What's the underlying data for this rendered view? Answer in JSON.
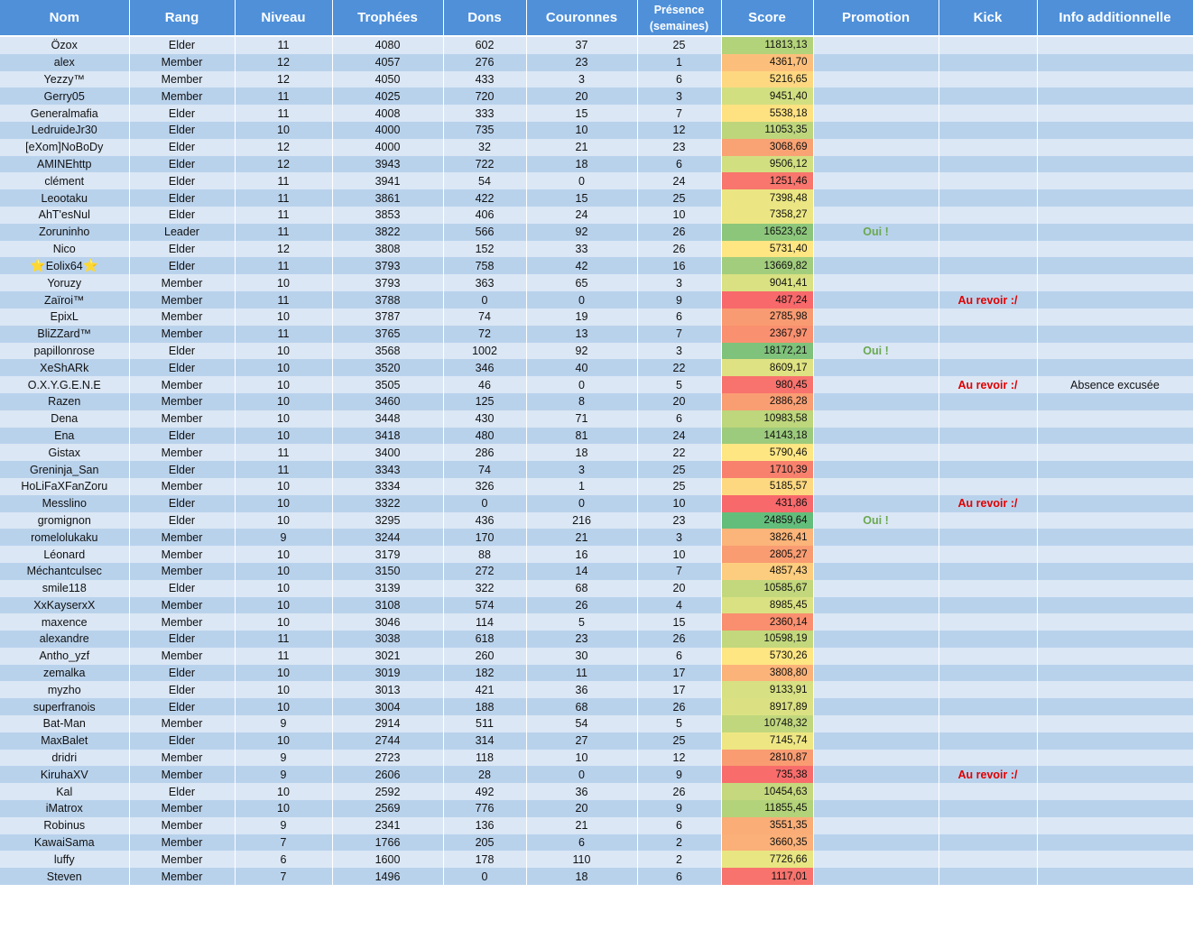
{
  "headers": {
    "nom": "Nom",
    "rang": "Rang",
    "niveau": "Niveau",
    "trophees": "Trophées",
    "dons": "Dons",
    "couronnes": "Couronnes",
    "presence_line1": "Présence",
    "presence_line2": "(semaines)",
    "score": "Score",
    "promotion": "Promotion",
    "kick": "Kick",
    "info": "Info additionnelle"
  },
  "star_glyph": "⭐",
  "rows": [
    {
      "nom": "Özox",
      "rang": "Elder",
      "niveau": "11",
      "trophees": "4080",
      "dons": "602",
      "couronnes": "37",
      "presence": "25",
      "score": "11813,13",
      "score_color": "#b3d37a",
      "promotion": "",
      "kick": "",
      "info": ""
    },
    {
      "nom": "alex",
      "rang": "Member",
      "niveau": "12",
      "trophees": "4057",
      "dons": "276",
      "couronnes": "23",
      "presence": "1",
      "score": "4361,70",
      "score_color": "#fcbf7b",
      "promotion": "",
      "kick": "",
      "info": ""
    },
    {
      "nom": "Yezzy™",
      "rang": "Member",
      "niveau": "12",
      "trophees": "4050",
      "dons": "433",
      "couronnes": "3",
      "presence": "6",
      "score": "5216,65",
      "score_color": "#fed881",
      "promotion": "",
      "kick": "",
      "info": ""
    },
    {
      "nom": "Gerry05",
      "rang": "Member",
      "niveau": "11",
      "trophees": "4025",
      "dons": "720",
      "couronnes": "20",
      "presence": "3",
      "score": "9451,40",
      "score_color": "#d2df81",
      "promotion": "",
      "kick": "",
      "info": ""
    },
    {
      "nom": "Generalmafia",
      "rang": "Elder",
      "niveau": "11",
      "trophees": "4008",
      "dons": "333",
      "couronnes": "15",
      "presence": "7",
      "score": "5538,18",
      "score_color": "#fee282",
      "promotion": "",
      "kick": "",
      "info": ""
    },
    {
      "nom": "LedruideJr30",
      "rang": "Elder",
      "niveau": "10",
      "trophees": "4000",
      "dons": "735",
      "couronnes": "10",
      "presence": "12",
      "score": "11053,35",
      "score_color": "#bdd67c",
      "promotion": "",
      "kick": "",
      "info": ""
    },
    {
      "nom": "[eXom]NoBoDy",
      "rang": "Elder",
      "niveau": "12",
      "trophees": "4000",
      "dons": "32",
      "couronnes": "21",
      "presence": "23",
      "score": "3068,69",
      "score_color": "#f9a273",
      "promotion": "",
      "kick": "",
      "info": ""
    },
    {
      "nom": "AMINEhttp",
      "rang": "Elder",
      "niveau": "12",
      "trophees": "3943",
      "dons": "722",
      "couronnes": "18",
      "presence": "6",
      "score": "9506,12",
      "score_color": "#d1df81",
      "promotion": "",
      "kick": "",
      "info": ""
    },
    {
      "nom": "clément",
      "rang": "Elder",
      "niveau": "11",
      "trophees": "3941",
      "dons": "54",
      "couronnes": "0",
      "presence": "24",
      "score": "1251,46",
      "score_color": "#f8766d",
      "promotion": "",
      "kick": "",
      "info": ""
    },
    {
      "nom": "Leootaku",
      "rang": "Elder",
      "niveau": "11",
      "trophees": "3861",
      "dons": "422",
      "couronnes": "15",
      "presence": "25",
      "score": "7398,48",
      "score_color": "#ebe683",
      "promotion": "",
      "kick": "",
      "info": ""
    },
    {
      "nom": "AhT'esNul",
      "rang": "Elder",
      "niveau": "11",
      "trophees": "3853",
      "dons": "406",
      "couronnes": "24",
      "presence": "10",
      "score": "7358,27",
      "score_color": "#ebe683",
      "promotion": "",
      "kick": "",
      "info": ""
    },
    {
      "nom": "Zoruninho",
      "rang": "Leader",
      "niveau": "11",
      "trophees": "3822",
      "dons": "566",
      "couronnes": "92",
      "presence": "26",
      "score": "16523,62",
      "score_color": "#8cc67b",
      "promotion": "Oui !",
      "kick": "",
      "info": ""
    },
    {
      "nom": "Nico",
      "rang": "Elder",
      "niveau": "12",
      "trophees": "3808",
      "dons": "152",
      "couronnes": "33",
      "presence": "26",
      "score": "5731,40",
      "score_color": "#fee683",
      "promotion": "",
      "kick": "",
      "info": ""
    },
    {
      "nom": "Eolix64",
      "star": true,
      "rang": "Elder",
      "niveau": "11",
      "trophees": "3793",
      "dons": "758",
      "couronnes": "42",
      "presence": "16",
      "score": "13669,82",
      "score_color": "#a2cd7d",
      "promotion": "",
      "kick": "",
      "info": ""
    },
    {
      "nom": "Yoruzy",
      "rang": "Member",
      "niveau": "10",
      "trophees": "3793",
      "dons": "363",
      "couronnes": "65",
      "presence": "3",
      "score": "9041,41",
      "score_color": "#d9e182",
      "promotion": "",
      "kick": "",
      "info": ""
    },
    {
      "nom": "Zaïroi™",
      "rang": "Member",
      "niveau": "11",
      "trophees": "3788",
      "dons": "0",
      "couronnes": "0",
      "presence": "9",
      "score": "487,24",
      "score_color": "#f8696b",
      "promotion": "",
      "kick": "Au revoir :/",
      "info": ""
    },
    {
      "nom": "EpixL",
      "rang": "Member",
      "niveau": "10",
      "trophees": "3787",
      "dons": "74",
      "couronnes": "19",
      "presence": "6",
      "score": "2785,98",
      "score_color": "#f99b72",
      "promotion": "",
      "kick": "",
      "info": ""
    },
    {
      "nom": "BliZZard™",
      "rang": "Member",
      "niveau": "11",
      "trophees": "3765",
      "dons": "72",
      "couronnes": "13",
      "presence": "7",
      "score": "2367,97",
      "score_color": "#f9906f",
      "promotion": "",
      "kick": "",
      "info": ""
    },
    {
      "nom": "papillonrose",
      "rang": "Elder",
      "niveau": "10",
      "trophees": "3568",
      "dons": "1002",
      "couronnes": "92",
      "presence": "3",
      "score": "18172,21",
      "score_color": "#7fc27b",
      "promotion": "Oui !",
      "kick": "",
      "info": ""
    },
    {
      "nom": "XeShARk",
      "rang": "Elder",
      "niveau": "10",
      "trophees": "3520",
      "dons": "346",
      "couronnes": "40",
      "presence": "22",
      "score": "8609,17",
      "score_color": "#dfe282",
      "promotion": "",
      "kick": "",
      "info": ""
    },
    {
      "nom": "O.X.Y.G.E.N.E",
      "rang": "Member",
      "niveau": "10",
      "trophees": "3505",
      "dons": "46",
      "couronnes": "0",
      "presence": "5",
      "score": "980,45",
      "score_color": "#f8736d",
      "promotion": "",
      "kick": "Au revoir :/",
      "info": "Absence excusée"
    },
    {
      "nom": "Razen",
      "rang": "Member",
      "niveau": "10",
      "trophees": "3460",
      "dons": "125",
      "couronnes": "8",
      "presence": "20",
      "score": "2886,28",
      "score_color": "#f99e73",
      "promotion": "",
      "kick": "",
      "info": ""
    },
    {
      "nom": "Dena",
      "rang": "Member",
      "niveau": "10",
      "trophees": "3448",
      "dons": "430",
      "couronnes": "71",
      "presence": "6",
      "score": "10983,58",
      "score_color": "#bed67c",
      "promotion": "",
      "kick": "",
      "info": ""
    },
    {
      "nom": "Ena",
      "rang": "Elder",
      "niveau": "10",
      "trophees": "3418",
      "dons": "480",
      "couronnes": "81",
      "presence": "24",
      "score": "14143,18",
      "score_color": "#9dcb7d",
      "promotion": "",
      "kick": "",
      "info": ""
    },
    {
      "nom": "Gistax",
      "rang": "Member",
      "niveau": "11",
      "trophees": "3400",
      "dons": "286",
      "couronnes": "18",
      "presence": "22",
      "score": "5790,46",
      "score_color": "#fee783",
      "promotion": "",
      "kick": "",
      "info": ""
    },
    {
      "nom": "Greninja_San",
      "rang": "Elder",
      "niveau": "11",
      "trophees": "3343",
      "dons": "74",
      "couronnes": "3",
      "presence": "25",
      "score": "1710,39",
      "score_color": "#f8816e",
      "promotion": "",
      "kick": "",
      "info": ""
    },
    {
      "nom": "HoLiFaXFanZoru",
      "rang": "Member",
      "niveau": "10",
      "trophees": "3334",
      "dons": "326",
      "couronnes": "1",
      "presence": "25",
      "score": "5185,57",
      "score_color": "#fed880",
      "promotion": "",
      "kick": "",
      "info": ""
    },
    {
      "nom": "Messlino",
      "rang": "Elder",
      "niveau": "10",
      "trophees": "3322",
      "dons": "0",
      "couronnes": "0",
      "presence": "10",
      "score": "431,86",
      "score_color": "#f8696b",
      "promotion": "",
      "kick": "Au revoir :/",
      "info": ""
    },
    {
      "nom": "gromignon",
      "rang": "Elder",
      "niveau": "10",
      "trophees": "3295",
      "dons": "436",
      "couronnes": "216",
      "presence": "23",
      "score": "24859,64",
      "score_color": "#63be7b",
      "promotion": "Oui !",
      "kick": "",
      "info": ""
    },
    {
      "nom": "romelolukaku",
      "rang": "Member",
      "niveau": "9",
      "trophees": "3244",
      "dons": "170",
      "couronnes": "21",
      "presence": "3",
      "score": "3826,41",
      "score_color": "#fbb479",
      "promotion": "",
      "kick": "",
      "info": ""
    },
    {
      "nom": "Léonard",
      "rang": "Member",
      "niveau": "10",
      "trophees": "3179",
      "dons": "88",
      "couronnes": "16",
      "presence": "10",
      "score": "2805,27",
      "score_color": "#f99c72",
      "promotion": "",
      "kick": "",
      "info": ""
    },
    {
      "nom": "Méchantculsec",
      "rang": "Member",
      "niveau": "10",
      "trophees": "3150",
      "dons": "272",
      "couronnes": "14",
      "presence": "7",
      "score": "4857,43",
      "score_color": "#fdcd7f",
      "promotion": "",
      "kick": "",
      "info": ""
    },
    {
      "nom": "smile118",
      "rang": "Elder",
      "niveau": "10",
      "trophees": "3139",
      "dons": "322",
      "couronnes": "68",
      "presence": "20",
      "score": "10585,67",
      "score_color": "#c3d87d",
      "promotion": "",
      "kick": "",
      "info": ""
    },
    {
      "nom": "XxKayserxX",
      "rang": "Member",
      "niveau": "10",
      "trophees": "3108",
      "dons": "574",
      "couronnes": "26",
      "presence": "4",
      "score": "8985,45",
      "score_color": "#dae182",
      "promotion": "",
      "kick": "",
      "info": ""
    },
    {
      "nom": "maxence",
      "rang": "Member",
      "niveau": "10",
      "trophees": "3046",
      "dons": "114",
      "couronnes": "5",
      "presence": "15",
      "score": "2360,14",
      "score_color": "#f98f6f",
      "promotion": "",
      "kick": "",
      "info": ""
    },
    {
      "nom": "alexandre",
      "rang": "Elder",
      "niveau": "11",
      "trophees": "3038",
      "dons": "618",
      "couronnes": "23",
      "presence": "26",
      "score": "10598,19",
      "score_color": "#c3d87d",
      "promotion": "",
      "kick": "",
      "info": ""
    },
    {
      "nom": "Antho_yzf",
      "rang": "Member",
      "niveau": "11",
      "trophees": "3021",
      "dons": "260",
      "couronnes": "30",
      "presence": "6",
      "score": "5730,26",
      "score_color": "#fee683",
      "promotion": "",
      "kick": "",
      "info": ""
    },
    {
      "nom": "zemalka",
      "rang": "Elder",
      "niveau": "10",
      "trophees": "3019",
      "dons": "182",
      "couronnes": "11",
      "presence": "17",
      "score": "3808,80",
      "score_color": "#fbb379",
      "promotion": "",
      "kick": "",
      "info": ""
    },
    {
      "nom": "myzho",
      "rang": "Elder",
      "niveau": "10",
      "trophees": "3013",
      "dons": "421",
      "couronnes": "36",
      "presence": "17",
      "score": "9133,91",
      "score_color": "#d7e082",
      "promotion": "",
      "kick": "",
      "info": ""
    },
    {
      "nom": "superfranois",
      "rang": "Elder",
      "niveau": "10",
      "trophees": "3004",
      "dons": "188",
      "couronnes": "68",
      "presence": "26",
      "score": "8917,89",
      "score_color": "#dbe182",
      "promotion": "",
      "kick": "",
      "info": ""
    },
    {
      "nom": "Bat-Man",
      "rang": "Member",
      "niveau": "9",
      "trophees": "2914",
      "dons": "511",
      "couronnes": "54",
      "presence": "5",
      "score": "10748,32",
      "score_color": "#c1d77d",
      "promotion": "",
      "kick": "",
      "info": ""
    },
    {
      "nom": "MaxBalet",
      "rang": "Elder",
      "niveau": "10",
      "trophees": "2744",
      "dons": "314",
      "couronnes": "27",
      "presence": "25",
      "score": "7145,74",
      "score_color": "#eee683",
      "promotion": "",
      "kick": "",
      "info": ""
    },
    {
      "nom": "dridri",
      "rang": "Member",
      "niveau": "9",
      "trophees": "2723",
      "dons": "118",
      "couronnes": "10",
      "presence": "12",
      "score": "2810,87",
      "score_color": "#f99c72",
      "promotion": "",
      "kick": "",
      "info": ""
    },
    {
      "nom": "KiruhaXV",
      "rang": "Member",
      "niveau": "9",
      "trophees": "2606",
      "dons": "28",
      "couronnes": "0",
      "presence": "9",
      "score": "735,38",
      "score_color": "#f86d6c",
      "promotion": "",
      "kick": "Au revoir :/",
      "info": ""
    },
    {
      "nom": "Kal",
      "rang": "Elder",
      "niveau": "10",
      "trophees": "2592",
      "dons": "492",
      "couronnes": "36",
      "presence": "26",
      "score": "10454,63",
      "score_color": "#c5d87d",
      "promotion": "",
      "kick": "",
      "info": ""
    },
    {
      "nom": "iMatrox",
      "rang": "Member",
      "niveau": "10",
      "trophees": "2569",
      "dons": "776",
      "couronnes": "20",
      "presence": "9",
      "score": "11855,45",
      "score_color": "#b3d37a",
      "promotion": "",
      "kick": "",
      "info": ""
    },
    {
      "nom": "Robinus",
      "rang": "Member",
      "niveau": "9",
      "trophees": "2341",
      "dons": "136",
      "couronnes": "21",
      "presence": "6",
      "score": "3551,35",
      "score_color": "#faad77",
      "promotion": "",
      "kick": "",
      "info": ""
    },
    {
      "nom": "KawaiSama",
      "rang": "Member",
      "niveau": "7",
      "trophees": "1766",
      "dons": "205",
      "couronnes": "6",
      "presence": "2",
      "score": "3660,35",
      "score_color": "#fab078",
      "promotion": "",
      "kick": "",
      "info": ""
    },
    {
      "nom": "luffy",
      "rang": "Member",
      "niveau": "6",
      "trophees": "1600",
      "dons": "178",
      "couronnes": "110",
      "presence": "2",
      "score": "7726,66",
      "score_color": "#e8e583",
      "promotion": "",
      "kick": "",
      "info": ""
    },
    {
      "nom": "Steven",
      "rang": "Member",
      "niveau": "7",
      "trophees": "1496",
      "dons": "0",
      "couronnes": "18",
      "presence": "6",
      "score": "1117,01",
      "score_color": "#f8736d",
      "promotion": "",
      "kick": "",
      "info": ""
    }
  ]
}
